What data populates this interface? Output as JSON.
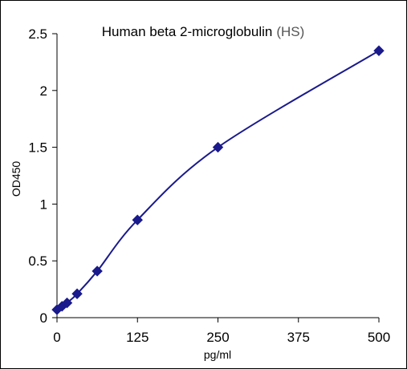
{
  "chart_data": {
    "type": "line",
    "title": "Human beta 2-microglobulin",
    "subtitle": "(HS)",
    "xlabel": "pg/ml",
    "ylabel": "OD450",
    "xlim": [
      0,
      500
    ],
    "ylim": [
      0,
      2.5
    ],
    "xticks": [
      0,
      125,
      250,
      375,
      500
    ],
    "yticks": [
      0,
      0.5,
      1,
      1.5,
      2,
      2.5
    ],
    "xtick_labels": [
      "0",
      "125",
      "250",
      "375",
      "500"
    ],
    "ytick_labels": [
      "0",
      "0.5",
      "1",
      "1.5",
      "2",
      "2.5"
    ],
    "grid": false,
    "legend": "none",
    "series": [
      {
        "x": [
          0,
          7.8,
          15.6,
          31.25,
          62.5,
          125,
          250,
          500
        ],
        "y": [
          0.07,
          0.1,
          0.13,
          0.21,
          0.41,
          0.86,
          1.5,
          2.35
        ],
        "marker": "diamond",
        "color": "#1a1a8c"
      }
    ]
  }
}
